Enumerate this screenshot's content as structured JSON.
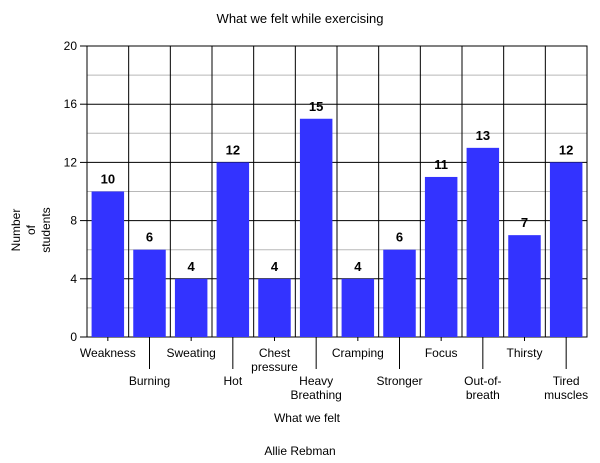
{
  "chart_data": {
    "type": "bar",
    "title": "What we felt while exercising",
    "xlabel": "What we felt",
    "ylabel": [
      "Number",
      "of",
      "students"
    ],
    "author": "Allie Rebman",
    "categories": [
      [
        "Weakness"
      ],
      [
        "Burning"
      ],
      [
        "Sweating"
      ],
      [
        "Hot"
      ],
      [
        "Chest",
        "pressure"
      ],
      [
        "Heavy",
        "Breathing"
      ],
      [
        "Cramping"
      ],
      [
        "Stronger"
      ],
      [
        "Focus"
      ],
      [
        "Out-of-",
        "breath"
      ],
      [
        "Thirsty"
      ],
      [
        "Tired",
        "muscles"
      ]
    ],
    "values": [
      10,
      6,
      4,
      12,
      4,
      15,
      4,
      6,
      11,
      13,
      7,
      12
    ],
    "ylim": [
      0,
      20
    ],
    "yticks": [
      0,
      4,
      8,
      12,
      16,
      20
    ],
    "grid": true,
    "bar_color": "#3333ff"
  }
}
